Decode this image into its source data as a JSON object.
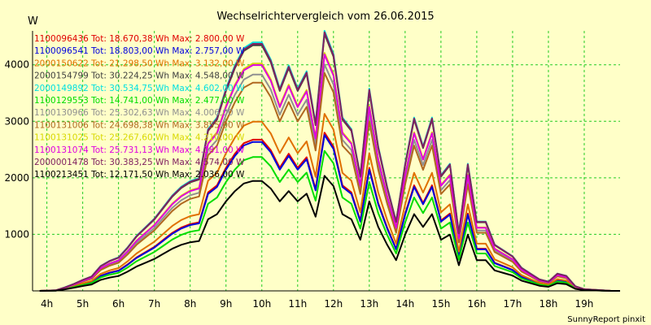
{
  "chart_data": {
    "type": "line",
    "title": "Wechselrichtervergleich vom 26.06.2015",
    "ylabel": "W",
    "footer": "SunnyReport pinxit",
    "x_ticks": [
      "4h",
      "5h",
      "6h",
      "7h",
      "8h",
      "9h",
      "10h",
      "11h",
      "12h",
      "13h",
      "14h",
      "15h",
      "16h",
      "17h",
      "18h",
      "19h"
    ],
    "x_tick_values": [
      4,
      5,
      6,
      7,
      8,
      9,
      10,
      11,
      12,
      13,
      14,
      15,
      16,
      17,
      18,
      19
    ],
    "y_ticks": [
      1000,
      2000,
      3000,
      4000
    ],
    "xlim": [
      3.6,
      20.0
    ],
    "ylim": [
      0,
      4600
    ],
    "grid": true,
    "legend_position": "top-left",
    "base_profile": {
      "x": [
        3.8,
        4.25,
        4.5,
        4.75,
        5.0,
        5.25,
        5.5,
        5.75,
        6.0,
        6.25,
        6.5,
        6.75,
        7.0,
        7.25,
        7.5,
        7.75,
        8.0,
        8.25,
        8.5,
        8.75,
        9.0,
        9.25,
        9.5,
        9.75,
        10.0,
        10.25,
        10.5,
        10.75,
        11.0,
        11.25,
        11.5,
        11.75,
        12.0,
        12.25,
        12.5,
        12.75,
        13.0,
        13.25,
        13.5,
        13.75,
        14.0,
        14.25,
        14.5,
        14.75,
        15.0,
        15.25,
        15.5,
        15.75,
        16.0,
        16.25,
        16.5,
        16.75,
        17.0,
        17.25,
        17.5,
        17.75,
        18.0,
        18.25,
        18.5,
        18.75,
        19.0,
        19.25,
        19.5,
        19.75,
        20.0
      ],
      "y": [
        0,
        0.1,
        0.6,
        1.2,
        1.9,
        2.5,
        4.3,
        5.2,
        5.8,
        7.5,
        9.5,
        11,
        12.5,
        14.5,
        16.5,
        18,
        19,
        19.5,
        28,
        30,
        35,
        39,
        42,
        43,
        43,
        40,
        35,
        39,
        35,
        38,
        29,
        45,
        41,
        30,
        28,
        20,
        35,
        25,
        18,
        12,
        22,
        30,
        25,
        30,
        20,
        22,
        10,
        22,
        12,
        12,
        8,
        7,
        6,
        4,
        3,
        2,
        1.6,
        3,
        2.6,
        0.8,
        0.3,
        0.2,
        0.1,
        0,
        0
      ]
    },
    "series": [
      {
        "name": "1100096436",
        "legend": "1100096436 Tot: 18.670,38 Wh Max: 2.800,00 W",
        "color": "#e00000",
        "max": 2800
      },
      {
        "name": "1100096541",
        "legend": "1100096541 Tot: 18.803,00 Wh Max: 2.757,00 W",
        "color": "#0000dd",
        "max": 2757
      },
      {
        "name": "2000150622",
        "legend": "2000150622 Tot: 21.298,50 Wh Max: 3.132,00 W",
        "color": "#e07000",
        "max": 3132
      },
      {
        "name": "2000154799",
        "legend": "2000154799 Tot: 30.224,25 Wh Max: 4.548,00 W",
        "color": "#404040",
        "max": 4548
      },
      {
        "name": "2000149892",
        "legend": "2000149892 Tot: 30.534,75 Wh Max: 4.602,00 W",
        "color": "#00e0e0",
        "max": 4602
      },
      {
        "name": "1100129553",
        "legend": "1100129553 Tot: 14.741,00 Wh Max: 2.477,00 W",
        "color": "#00dd00",
        "max": 2477
      },
      {
        "name": "1100130966",
        "legend": "1100130966 Tot: 25.302,63 Wh Max: 4.006,00 W",
        "color": "#909090",
        "max": 4006
      },
      {
        "name": "1100131006",
        "legend": "1100131006 Tot: 24.698,38 Wh Max: 3.855,00 W",
        "color": "#b06820",
        "max": 3855
      },
      {
        "name": "1100131025",
        "legend": "1100131025 Tot: 25.267,60 Wh Max: 4.210,00 W",
        "color": "#d8d800",
        "max": 4210
      },
      {
        "name": "1100131074",
        "legend": "1100131074 Tot: 25.731,13 Wh Max: 4.181,00 W",
        "color": "#e000e0",
        "max": 4181
      },
      {
        "name": "2000001478",
        "legend": "2000001478 Tot: 30.383,25 Wh Max: 4.574,00 W",
        "color": "#802060",
        "max": 4574
      },
      {
        "name": "1100213451",
        "legend": "1100213451 Tot: 12.171,50 Wh Max: 2.036,00 W",
        "color": "#000000",
        "max": 2036
      }
    ]
  }
}
